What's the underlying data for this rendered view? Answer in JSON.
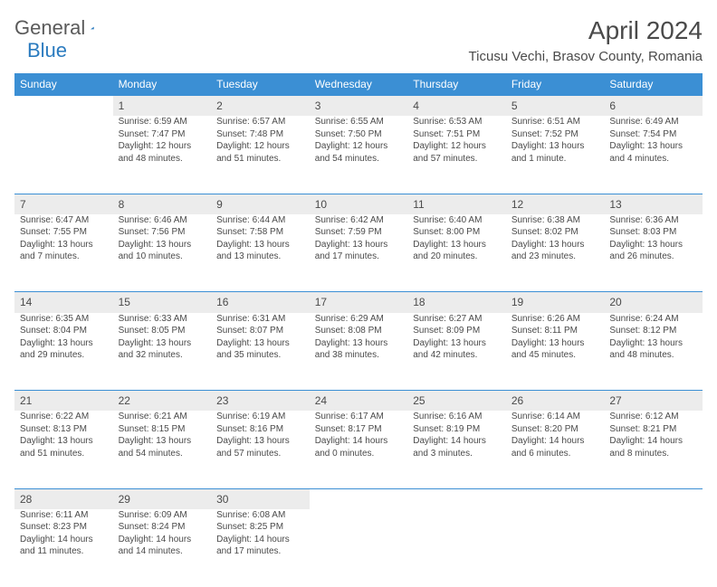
{
  "logo": {
    "text1": "General",
    "text2": "Blue"
  },
  "title": "April 2024",
  "location": "Ticusu Vechi, Brasov County, Romania",
  "colors": {
    "header_bg": "#3b8fd4",
    "header_text": "#ffffff",
    "daynum_bg": "#ececec",
    "body_text": "#4a4a4a",
    "page_bg": "#ffffff",
    "logo_blue": "#2b7bbf"
  },
  "typography": {
    "title_fontsize": 28,
    "location_fontsize": 15,
    "weekday_fontsize": 12,
    "daynum_fontsize": 12,
    "body_fontsize": 10
  },
  "weekdays": [
    "Sunday",
    "Monday",
    "Tuesday",
    "Wednesday",
    "Thursday",
    "Friday",
    "Saturday"
  ],
  "days": {
    "1": {
      "sunrise": "6:59 AM",
      "sunset": "7:47 PM",
      "daylight": "12 hours and 48 minutes."
    },
    "2": {
      "sunrise": "6:57 AM",
      "sunset": "7:48 PM",
      "daylight": "12 hours and 51 minutes."
    },
    "3": {
      "sunrise": "6:55 AM",
      "sunset": "7:50 PM",
      "daylight": "12 hours and 54 minutes."
    },
    "4": {
      "sunrise": "6:53 AM",
      "sunset": "7:51 PM",
      "daylight": "12 hours and 57 minutes."
    },
    "5": {
      "sunrise": "6:51 AM",
      "sunset": "7:52 PM",
      "daylight": "13 hours and 1 minute."
    },
    "6": {
      "sunrise": "6:49 AM",
      "sunset": "7:54 PM",
      "daylight": "13 hours and 4 minutes."
    },
    "7": {
      "sunrise": "6:47 AM",
      "sunset": "7:55 PM",
      "daylight": "13 hours and 7 minutes."
    },
    "8": {
      "sunrise": "6:46 AM",
      "sunset": "7:56 PM",
      "daylight": "13 hours and 10 minutes."
    },
    "9": {
      "sunrise": "6:44 AM",
      "sunset": "7:58 PM",
      "daylight": "13 hours and 13 minutes."
    },
    "10": {
      "sunrise": "6:42 AM",
      "sunset": "7:59 PM",
      "daylight": "13 hours and 17 minutes."
    },
    "11": {
      "sunrise": "6:40 AM",
      "sunset": "8:00 PM",
      "daylight": "13 hours and 20 minutes."
    },
    "12": {
      "sunrise": "6:38 AM",
      "sunset": "8:02 PM",
      "daylight": "13 hours and 23 minutes."
    },
    "13": {
      "sunrise": "6:36 AM",
      "sunset": "8:03 PM",
      "daylight": "13 hours and 26 minutes."
    },
    "14": {
      "sunrise": "6:35 AM",
      "sunset": "8:04 PM",
      "daylight": "13 hours and 29 minutes."
    },
    "15": {
      "sunrise": "6:33 AM",
      "sunset": "8:05 PM",
      "daylight": "13 hours and 32 minutes."
    },
    "16": {
      "sunrise": "6:31 AM",
      "sunset": "8:07 PM",
      "daylight": "13 hours and 35 minutes."
    },
    "17": {
      "sunrise": "6:29 AM",
      "sunset": "8:08 PM",
      "daylight": "13 hours and 38 minutes."
    },
    "18": {
      "sunrise": "6:27 AM",
      "sunset": "8:09 PM",
      "daylight": "13 hours and 42 minutes."
    },
    "19": {
      "sunrise": "6:26 AM",
      "sunset": "8:11 PM",
      "daylight": "13 hours and 45 minutes."
    },
    "20": {
      "sunrise": "6:24 AM",
      "sunset": "8:12 PM",
      "daylight": "13 hours and 48 minutes."
    },
    "21": {
      "sunrise": "6:22 AM",
      "sunset": "8:13 PM",
      "daylight": "13 hours and 51 minutes."
    },
    "22": {
      "sunrise": "6:21 AM",
      "sunset": "8:15 PM",
      "daylight": "13 hours and 54 minutes."
    },
    "23": {
      "sunrise": "6:19 AM",
      "sunset": "8:16 PM",
      "daylight": "13 hours and 57 minutes."
    },
    "24": {
      "sunrise": "6:17 AM",
      "sunset": "8:17 PM",
      "daylight": "14 hours and 0 minutes."
    },
    "25": {
      "sunrise": "6:16 AM",
      "sunset": "8:19 PM",
      "daylight": "14 hours and 3 minutes."
    },
    "26": {
      "sunrise": "6:14 AM",
      "sunset": "8:20 PM",
      "daylight": "14 hours and 6 minutes."
    },
    "27": {
      "sunrise": "6:12 AM",
      "sunset": "8:21 PM",
      "daylight": "14 hours and 8 minutes."
    },
    "28": {
      "sunrise": "6:11 AM",
      "sunset": "8:23 PM",
      "daylight": "14 hours and 11 minutes."
    },
    "29": {
      "sunrise": "6:09 AM",
      "sunset": "8:24 PM",
      "daylight": "14 hours and 14 minutes."
    },
    "30": {
      "sunrise": "6:08 AM",
      "sunset": "8:25 PM",
      "daylight": "14 hours and 17 minutes."
    }
  },
  "layout": {
    "weeks": [
      [
        null,
        1,
        2,
        3,
        4,
        5,
        6
      ],
      [
        7,
        8,
        9,
        10,
        11,
        12,
        13
      ],
      [
        14,
        15,
        16,
        17,
        18,
        19,
        20
      ],
      [
        21,
        22,
        23,
        24,
        25,
        26,
        27
      ],
      [
        28,
        29,
        30,
        null,
        null,
        null,
        null
      ]
    ]
  },
  "labels": {
    "sunrise_prefix": "Sunrise: ",
    "sunset_prefix": "Sunset: ",
    "daylight_prefix": "Daylight: "
  }
}
